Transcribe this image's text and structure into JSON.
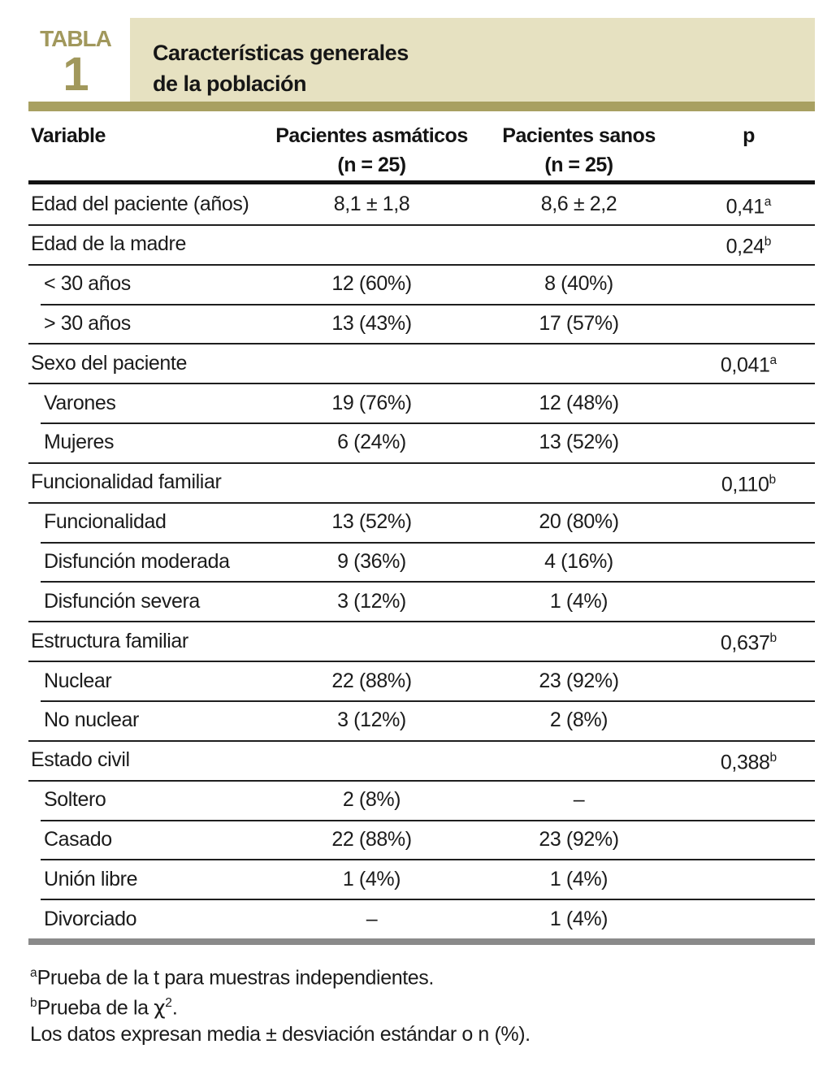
{
  "badge": {
    "word": "TABLA",
    "number": "1"
  },
  "title": {
    "line1": "Características generales",
    "line2": "de la población"
  },
  "columns": {
    "variable": "Variable",
    "col2_line1": "Pacientes asmáticos",
    "col2_line2": "(n = 25)",
    "col3_line1": "Pacientes sanos",
    "col3_line2": "(n = 25)",
    "p": "p"
  },
  "table": {
    "rows": [
      {
        "label": "Edad del paciente (años)",
        "asmaticos": "8,1 ± 1,8",
        "sanos": "8,6 ± 2,2",
        "p": "0,41",
        "p_sup": "a",
        "indent": false,
        "sep": "none"
      },
      {
        "label": "Edad de la madre",
        "asmaticos": "",
        "sanos": "",
        "p": "0,24",
        "p_sup": "b",
        "indent": false,
        "sep": "full"
      },
      {
        "label": "< 30 años",
        "asmaticos": "12 (60%)",
        "sanos": "8 (40%)",
        "p": "",
        "p_sup": "",
        "indent": true,
        "sep": "full"
      },
      {
        "label": "> 30 años",
        "asmaticos": "13 (43%)",
        "sanos": "17 (57%)",
        "p": "",
        "p_sup": "",
        "indent": true,
        "sep": "indent"
      },
      {
        "label": "Sexo del paciente",
        "asmaticos": "",
        "sanos": "",
        "p": "0,041",
        "p_sup": "a",
        "indent": false,
        "sep": "full"
      },
      {
        "label": "Varones",
        "asmaticos": "19 (76%)",
        "sanos": "12 (48%)",
        "p": "",
        "p_sup": "",
        "indent": true,
        "sep": "full"
      },
      {
        "label": "Mujeres",
        "asmaticos": "6 (24%)",
        "sanos": "13 (52%)",
        "p": "",
        "p_sup": "",
        "indent": true,
        "sep": "indent"
      },
      {
        "label": "Funcionalidad familiar",
        "asmaticos": "",
        "sanos": "",
        "p": "0,110",
        "p_sup": "b",
        "indent": false,
        "sep": "full"
      },
      {
        "label": "Funcionalidad",
        "asmaticos": "13 (52%)",
        "sanos": "20 (80%)",
        "p": "",
        "p_sup": "",
        "indent": true,
        "sep": "full"
      },
      {
        "label": "Disfunción moderada",
        "asmaticos": "9 (36%)",
        "sanos": "4 (16%)",
        "p": "",
        "p_sup": "",
        "indent": true,
        "sep": "indent"
      },
      {
        "label": "Disfunción severa",
        "asmaticos": "3 (12%)",
        "sanos": "1 (4%)",
        "p": "",
        "p_sup": "",
        "indent": true,
        "sep": "indent"
      },
      {
        "label": "Estructura familiar",
        "asmaticos": "",
        "sanos": "",
        "p": "0,637",
        "p_sup": "b",
        "indent": false,
        "sep": "full"
      },
      {
        "label": "Nuclear",
        "asmaticos": "22 (88%)",
        "sanos": "23 (92%)",
        "p": "",
        "p_sup": "",
        "indent": true,
        "sep": "full"
      },
      {
        "label": "No nuclear",
        "asmaticos": "3 (12%)",
        "sanos": "2 (8%)",
        "p": "",
        "p_sup": "",
        "indent": true,
        "sep": "indent"
      },
      {
        "label": "Estado civil",
        "asmaticos": "",
        "sanos": "",
        "p": "0,388",
        "p_sup": "b",
        "indent": false,
        "sep": "full"
      },
      {
        "label": "Soltero",
        "asmaticos": "2 (8%)",
        "sanos": "–",
        "p": "",
        "p_sup": "",
        "indent": true,
        "sep": "full"
      },
      {
        "label": "Casado",
        "asmaticos": "22 (88%)",
        "sanos": "23 (92%)",
        "p": "",
        "p_sup": "",
        "indent": true,
        "sep": "indent"
      },
      {
        "label": "Unión libre",
        "asmaticos": "1 (4%)",
        "sanos": "1 (4%)",
        "p": "",
        "p_sup": "",
        "indent": true,
        "sep": "indent"
      },
      {
        "label": "Divorciado",
        "asmaticos": "–",
        "sanos": "1 (4%)",
        "p": "",
        "p_sup": "",
        "indent": true,
        "sep": "indent"
      }
    ]
  },
  "footnotes": {
    "a_sup": "a",
    "a_text": "Prueba de la t para muestras independientes.",
    "b_sup": "b",
    "b_text_pre": "Prueba de la ",
    "b_chi": "χ",
    "b_chi_sup": "2",
    "b_text_post": ".",
    "general": "Los datos expresan media ± desviación estándar o n (%)."
  },
  "colors": {
    "accent_olive": "#a8a061",
    "badge_text": "#a1985c",
    "title_band_beige": "#e6e1c1",
    "bottom_rule_gray": "#8a8a8a",
    "text_black": "#1b1b1b"
  }
}
